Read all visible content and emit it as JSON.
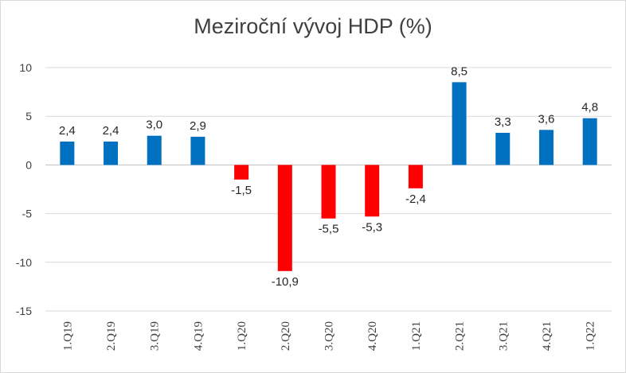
{
  "chart_data": {
    "type": "bar",
    "title": "Meziroční vývoj HDP (%)",
    "categories": [
      "1.Q19",
      "2.Q19",
      "3.Q19",
      "4.Q19",
      "1.Q20",
      "2.Q20",
      "3.Q20",
      "4.Q20",
      "1.Q21",
      "2.Q21",
      "3.Q21",
      "4.Q21",
      "1.Q22"
    ],
    "values": [
      2.4,
      2.4,
      3.0,
      2.9,
      -1.5,
      -10.9,
      -5.5,
      -5.3,
      -2.4,
      8.5,
      3.3,
      3.6,
      4.8
    ],
    "data_labels": [
      "2,4",
      "2,4",
      "3,0",
      "2,9",
      "-1,5",
      "-10,9",
      "-5,5",
      "-5,3",
      "-2,4",
      "8,5",
      "3,3",
      "3,6",
      "4,8"
    ],
    "y_ticks": [
      10,
      5,
      0,
      -5,
      -10,
      -15
    ],
    "y_tick_labels": [
      "10",
      "5",
      "0",
      "-5",
      "-10",
      "-15"
    ],
    "ylim": [
      -15,
      10
    ],
    "grid": true,
    "legend": "none",
    "colors": {
      "positive": "#0070c0",
      "negative": "#ff0000"
    }
  }
}
